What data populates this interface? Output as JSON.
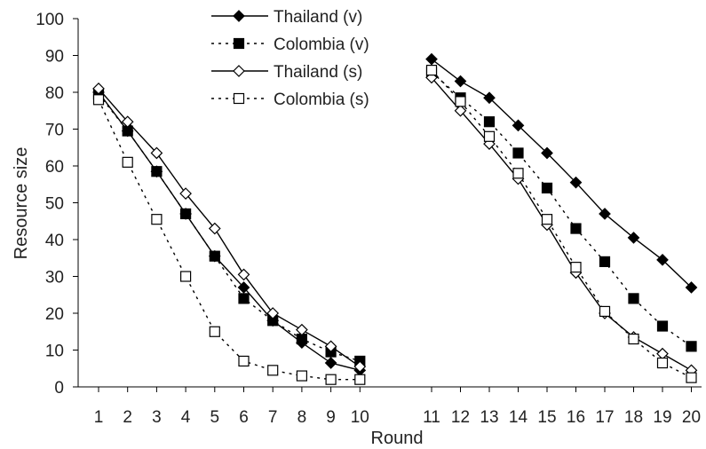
{
  "chart_data": {
    "type": "line",
    "xlabel": "Round",
    "ylabel": "Resource size",
    "ylim": [
      0,
      100
    ],
    "yticks": [
      0,
      10,
      20,
      30,
      40,
      50,
      60,
      70,
      80,
      90,
      100
    ],
    "xticks": [
      1,
      2,
      3,
      4,
      5,
      6,
      7,
      8,
      9,
      10,
      11,
      12,
      13,
      14,
      15,
      16,
      17,
      18,
      19,
      20
    ],
    "grid": false,
    "legend_position": "top",
    "segments": [
      [
        1,
        10
      ],
      [
        11,
        20
      ]
    ],
    "series": [
      {
        "name": "Thailand (v)",
        "line": "solid",
        "marker": "filled-diamond",
        "color": "#000000",
        "values": [
          80,
          69.5,
          58.5,
          47,
          35.5,
          27,
          18,
          12,
          6.5,
          4.5,
          89,
          83,
          78.5,
          71,
          63.5,
          55.5,
          47,
          40.5,
          34.5,
          27
        ]
      },
      {
        "name": "Colombia (v)",
        "line": "dotted",
        "marker": "filled-square",
        "color": "#000000",
        "values": [
          79.5,
          69.5,
          58.5,
          47,
          35.5,
          24,
          18,
          13,
          9.5,
          7,
          85.5,
          78.5,
          72,
          63.5,
          54,
          43,
          34,
          24,
          16.5,
          11
        ]
      },
      {
        "name": "Thailand (s)",
        "line": "solid",
        "marker": "open-diamond",
        "color": "#000000",
        "values": [
          81,
          72,
          63.5,
          52.5,
          43,
          30.5,
          20,
          15.5,
          11,
          5.5,
          84,
          75,
          66,
          56.5,
          44,
          31,
          20,
          13.5,
          9,
          4.5
        ]
      },
      {
        "name": "Colombia (s)",
        "line": "dotted",
        "marker": "open-square",
        "color": "#000000",
        "values": [
          78,
          61,
          45.5,
          30,
          15,
          7,
          4.5,
          3,
          2,
          2,
          86,
          77.5,
          68,
          58,
          45.5,
          32.5,
          20.5,
          13,
          6.5,
          2.5
        ]
      }
    ]
  }
}
